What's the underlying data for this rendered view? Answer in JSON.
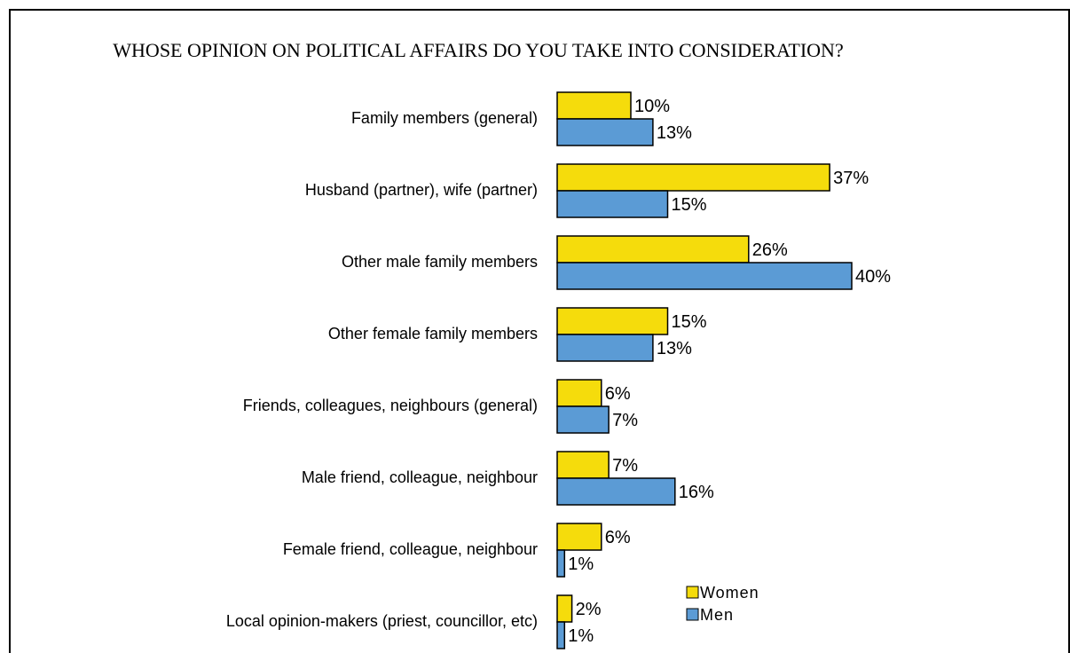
{
  "chart_data": {
    "type": "bar",
    "orientation": "horizontal",
    "title": "WHOSE OPINION ON POLITICAL AFFAIRS DO YOU TAKE INTO CONSIDERATION?",
    "categories": [
      "Family members (general)",
      "Husband (partner), wife (partner)",
      "Other male family members",
      "Other female family members",
      "Friends, colleagues, neighbours (general)",
      "Male friend, colleague, neighbour",
      "Female friend, colleague, neighbour",
      "Local opinion-makers (priest, councillor, etc)"
    ],
    "series": [
      {
        "name": "Women",
        "color": "#f5dc0c",
        "values": [
          10,
          37,
          26,
          15,
          6,
          7,
          6,
          2
        ],
        "labels": [
          "10%",
          "37%",
          "26%",
          "15%",
          "6%",
          "7%",
          "6%",
          "2%"
        ]
      },
      {
        "name": "Men",
        "color": "#5b9bd5",
        "values": [
          13,
          15,
          40,
          13,
          7,
          16,
          1,
          1
        ],
        "labels": [
          "13%",
          "15%",
          "40%",
          "13%",
          "7%",
          "16%",
          "1%",
          "1%"
        ]
      }
    ],
    "value_unit": "%",
    "xlim": [
      0,
      100
    ],
    "grid": false,
    "legend_position": "bottom-right"
  }
}
